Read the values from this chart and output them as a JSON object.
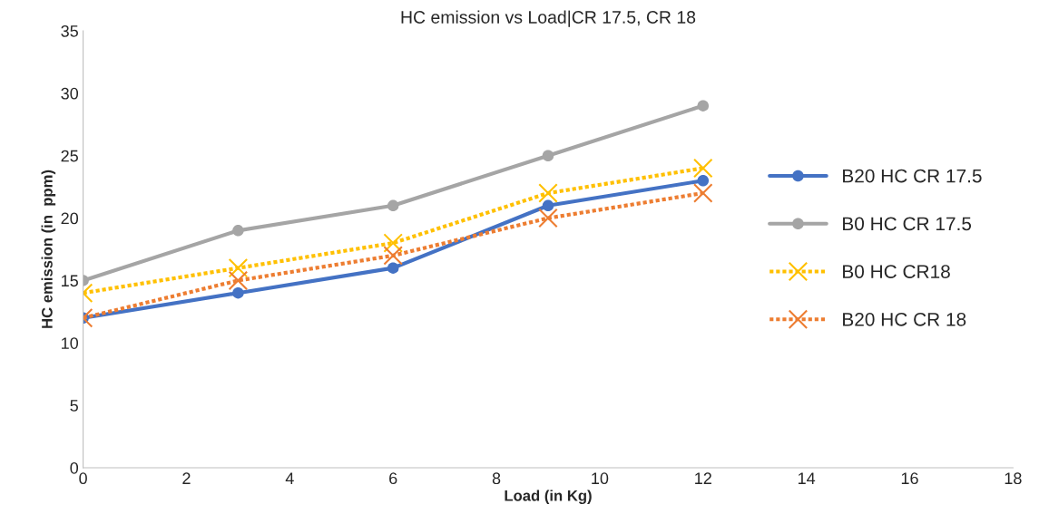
{
  "chart_data": {
    "type": "line",
    "title": "HC emission vs Load|CR 17.5, CR 18",
    "xlabel": "Load (in Kg)",
    "ylabel": "HC emission (in  ppm)",
    "x": [
      0,
      3,
      6,
      9,
      12
    ],
    "series": [
      {
        "name": "B20 HC CR 17.5",
        "color": "#4472c4",
        "marker": "circle",
        "line_style": "solid",
        "values": [
          12,
          14,
          16,
          21,
          23
        ]
      },
      {
        "name": "B0 HC CR 17.5",
        "color": "#a5a5a5",
        "marker": "circle",
        "line_style": "solid",
        "values": [
          15,
          19,
          21,
          25,
          29
        ]
      },
      {
        "name": "B0 HC CR18",
        "color": "#ffc000",
        "marker": "cross",
        "line_style": "dotted",
        "values": [
          14,
          16,
          18,
          22,
          24
        ]
      },
      {
        "name": "B20 HC CR 18",
        "color": "#ed7d31",
        "marker": "cross",
        "line_style": "dotted",
        "values": [
          12,
          15,
          17,
          20,
          22
        ]
      }
    ],
    "xlim": [
      0,
      18
    ],
    "xticks": [
      0,
      2,
      4,
      6,
      8,
      10,
      12,
      14,
      16,
      18
    ],
    "ylim": [
      0,
      35
    ],
    "yticks": [
      0,
      5,
      10,
      15,
      20,
      25,
      30,
      35
    ],
    "grid": false,
    "legend": "right"
  }
}
